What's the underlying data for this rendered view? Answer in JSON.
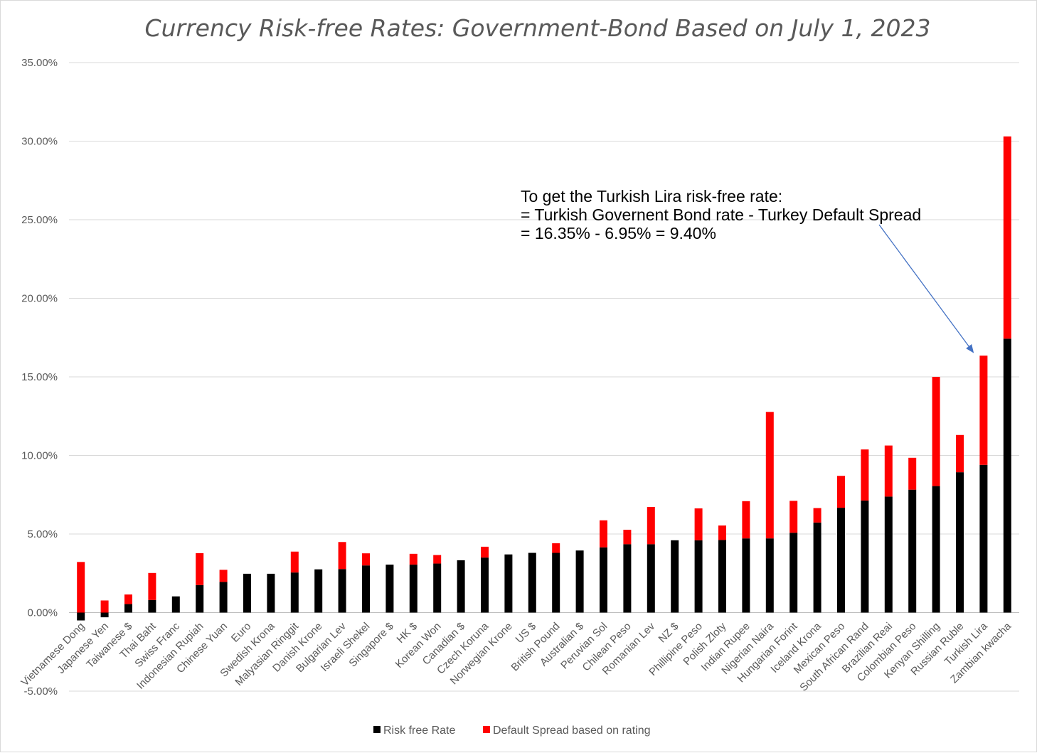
{
  "chart_data": {
    "type": "bar",
    "stacked": true,
    "title": "Currency Risk-free Rates: Government-Bond Based on July 1, 2023",
    "xlabel": "",
    "ylabel": "",
    "ylim": [
      -0.05,
      0.35
    ],
    "ytick_step": 0.05,
    "yticks": [
      "-5.00%",
      "0.00%",
      "5.00%",
      "10.00%",
      "15.00%",
      "20.00%",
      "25.00%",
      "30.00%",
      "35.00%"
    ],
    "grid": true,
    "legend_position": "bottom",
    "categories": [
      "Vietnamese Dong",
      "Japanese Yen",
      "Taiwanese $",
      "Thai Baht",
      "Swiss Franc",
      "Indonesian Rupiah",
      "Chinese Yuan",
      "Euro",
      "Swedish Krona",
      "Malyasian Ringgit",
      "Danish Krone",
      "Bulgarian Lev",
      "Israeli Shekel",
      "Singapore $",
      "HK $",
      "Korean Won",
      "Canadian $",
      "Czech Koruna",
      "Norwegian Krone",
      "US $",
      "British Pound",
      "Australian $",
      "Peruvian Sol",
      "Chilean Peso",
      "Romanian Lev",
      "NZ $",
      "Phillipine Peso",
      "Polish Zloty",
      "Indian Rupee",
      "Nigerian Naira",
      "Hungarian Forint",
      "Iceland Krona",
      "Mexican Peso",
      "South African Rand",
      "Brazilian Reai",
      "Colombian Peso",
      "Kenyan Shilling",
      "Russian Ruble",
      "Turkish Lira",
      "Zambian kwacha"
    ],
    "series": [
      {
        "name": "Risk free Rate",
        "color": "#000000",
        "values": [
          -0.005,
          -0.003,
          0.0054,
          0.008,
          0.0103,
          0.0175,
          0.0195,
          0.0247,
          0.0247,
          0.0255,
          0.0275,
          0.0277,
          0.03,
          0.0305,
          0.0305,
          0.0312,
          0.0333,
          0.035,
          0.037,
          0.038,
          0.038,
          0.0395,
          0.0415,
          0.0435,
          0.0435,
          0.046,
          0.046,
          0.0462,
          0.0472,
          0.0472,
          0.0508,
          0.0573,
          0.0667,
          0.0713,
          0.0738,
          0.0782,
          0.0805,
          0.0893,
          0.094,
          0.1743
        ]
      },
      {
        "name": "Default Spread based on rating",
        "color": "#ff0000",
        "values": [
          0.0322,
          0.0077,
          0.0061,
          0.0172,
          0,
          0.0203,
          0.0077,
          0,
          0,
          0.0133,
          0,
          0.0172,
          0.0077,
          0,
          0.0069,
          0.0054,
          0,
          0.0069,
          0,
          0,
          0.0061,
          0,
          0.0172,
          0.0092,
          0.0237,
          0,
          0.0203,
          0.0092,
          0.0237,
          0.0805,
          0.0203,
          0.0092,
          0.0203,
          0.0325,
          0.0325,
          0.0203,
          0.0695,
          0.0237,
          0.0695,
          0.1287
        ]
      }
    ],
    "annotation": {
      "lines": [
        "To get the Turkish Lira risk-free rate:",
        "= Turkish Governent Bond rate - Turkey Default Spread",
        "= 16.35% - 6.95% = 9.40%"
      ],
      "arrow_target_category": "Turkish Lira",
      "arrow_color": "#4472c4"
    }
  }
}
